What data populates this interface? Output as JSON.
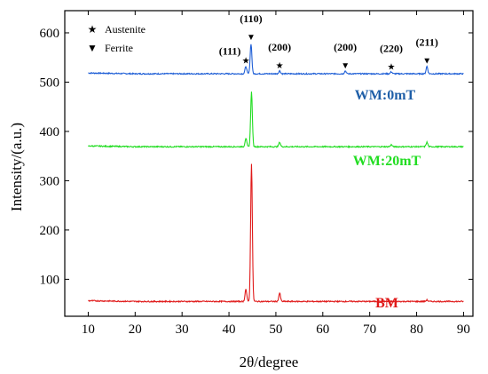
{
  "chart_data": {
    "type": "line",
    "title": "",
    "xlabel": "2θ/degree",
    "ylabel": "Intensity/(a.u.)",
    "xlim": [
      5,
      92
    ],
    "ylim": [
      25,
      645
    ],
    "xticks": [
      10,
      20,
      30,
      40,
      50,
      60,
      70,
      80,
      90
    ],
    "yticks": [
      100,
      200,
      300,
      400,
      500,
      600
    ],
    "grid": false,
    "legend_placement": "top-left",
    "legend": [
      {
        "symbol": "★",
        "label": "Austenite"
      },
      {
        "symbol": "▼",
        "label": "Ferrite"
      }
    ],
    "series": [
      {
        "name": "WM:0mT",
        "color": "#1f5fd6",
        "label_color": "#1f5fa8",
        "baseline": 517,
        "peaks": [
          [
            43.6,
            532
          ],
          [
            44.7,
            578
          ],
          [
            50.8,
            523
          ],
          [
            64.8,
            523
          ],
          [
            74.6,
            521
          ],
          [
            82.2,
            532
          ]
        ]
      },
      {
        "name": "WM:20mT",
        "color": "#22dd22",
        "label_color": "#22dd22",
        "baseline": 369,
        "peaks": [
          [
            43.6,
            386
          ],
          [
            44.8,
            480
          ],
          [
            50.8,
            378
          ],
          [
            74.6,
            373
          ],
          [
            82.2,
            378
          ]
        ]
      },
      {
        "name": "BM",
        "color": "#e01a1a",
        "label_color": "#e01a1a",
        "baseline": 55,
        "peaks": [
          [
            43.6,
            80
          ],
          [
            44.8,
            335
          ],
          [
            50.8,
            72
          ],
          [
            82.2,
            58
          ]
        ]
      }
    ],
    "annotations": [
      {
        "text": "(111)",
        "x": 43.6,
        "marker": "★",
        "y": 545
      },
      {
        "text": "(110)",
        "x": 44.7,
        "marker": "▼",
        "y": 593
      },
      {
        "text": "(200)",
        "x": 50.8,
        "marker": "★",
        "y": 535
      },
      {
        "text": "(200)",
        "x": 64.8,
        "marker": "▼",
        "y": 535
      },
      {
        "text": "(220)",
        "x": 74.6,
        "marker": "★",
        "y": 532
      },
      {
        "text": "(211)",
        "x": 82.2,
        "marker": "▼",
        "y": 545
      }
    ]
  }
}
